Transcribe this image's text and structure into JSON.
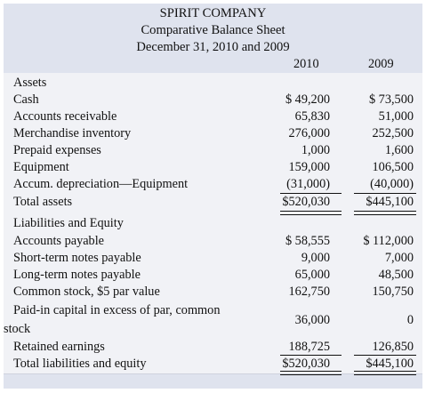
{
  "header": {
    "company": "SPIRIT COMPANY",
    "statement": "Comparative Balance Sheet",
    "period": "December 31, 2010 and 2009"
  },
  "columns": [
    "2010",
    "2009"
  ],
  "rows": [
    {
      "label": "Assets",
      "v2010": "",
      "v2009": ""
    },
    {
      "label": "Cash",
      "v2010": "$ 49,200",
      "v2009": "$ 73,500"
    },
    {
      "label": "Accounts receivable",
      "v2010": "65,830",
      "v2009": "51,000"
    },
    {
      "label": "Merchandise inventory",
      "v2010": "276,000",
      "v2009": "252,500"
    },
    {
      "label": "Prepaid expenses",
      "v2010": "1,000",
      "v2009": "1,600"
    },
    {
      "label": "Equipment",
      "v2010": "159,000",
      "v2009": "106,500"
    },
    {
      "label": "Accum. depreciation—Equipment",
      "v2010": "(31,000)",
      "v2009": "(40,000)"
    },
    {
      "label": "Total assets",
      "v2010": "$520,030",
      "v2009": "$445,100"
    },
    {
      "label": "Liabilities and Equity",
      "v2010": "",
      "v2009": ""
    },
    {
      "label": "Accounts payable",
      "v2010": "$ 58,555",
      "v2009": "$ 112,000"
    },
    {
      "label": "Short-term notes payable",
      "v2010": "9,000",
      "v2009": "7,000"
    },
    {
      "label": "Long-term notes payable",
      "v2010": "65,000",
      "v2009": "48,500"
    },
    {
      "label": "Common stock, $5 par value",
      "v2010": "162,750",
      "v2009": "150,750"
    },
    {
      "label": "Paid-in capital in excess of par, common",
      "label_line2": "stock",
      "v2010": "36,000",
      "v2009": "0"
    },
    {
      "label": "Retained earnings",
      "v2010": "188,725",
      "v2009": "126,850"
    },
    {
      "label": "Total liabilities and equity",
      "v2010": "$520,030",
      "v2009": "$445,100"
    }
  ]
}
